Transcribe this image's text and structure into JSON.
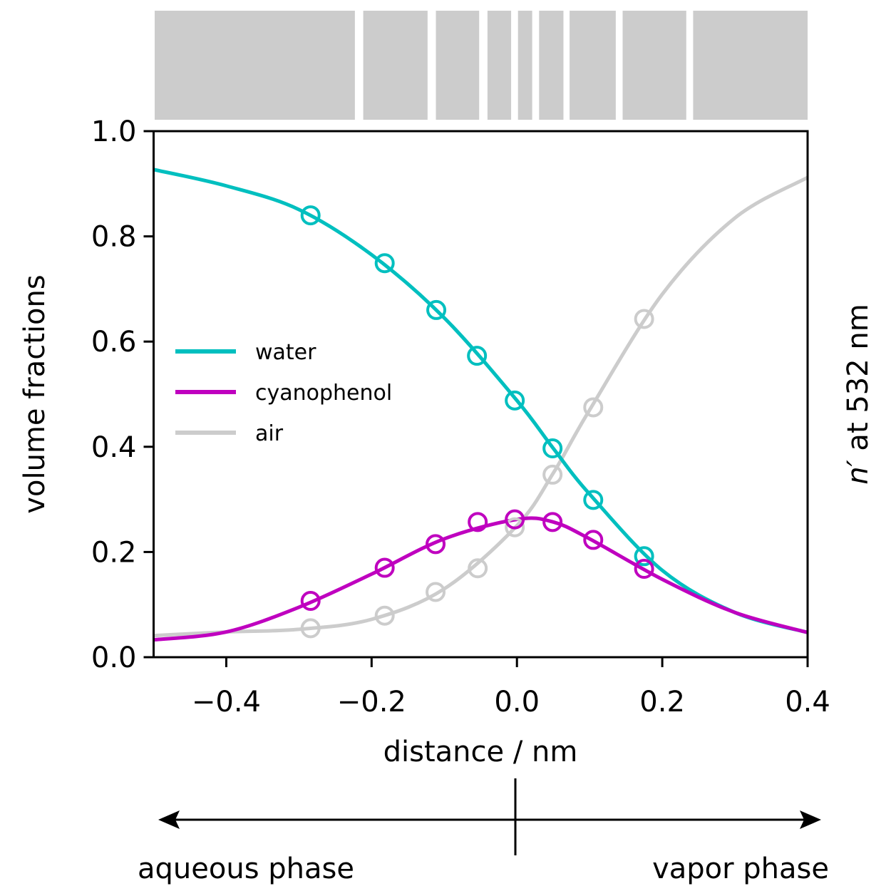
{
  "chart_data": {
    "type": "line",
    "xlabel": "distance / nm",
    "ylabel": "volume fractions",
    "ylabel_right": "n′ at 532 nm",
    "ylabel_right_italic": "n′",
    "ylabel_right_rest": " at 532 nm",
    "xlim": [
      -0.5,
      0.4
    ],
    "ylim": [
      0.0,
      1.0
    ],
    "xticks": [
      -0.4,
      -0.2,
      0.0,
      0.2,
      0.4
    ],
    "xtick_labels": [
      "−0.4",
      "−0.2",
      "0.0",
      "0.2",
      "0.4"
    ],
    "yticks": [
      0.0,
      0.2,
      0.4,
      0.6,
      0.8,
      1.0
    ],
    "ytick_labels": [
      "0.0",
      "0.2",
      "0.4",
      "0.6",
      "0.8",
      "1.0"
    ],
    "grid": false,
    "legend_placement": "center-left",
    "series": [
      {
        "name": "water",
        "color": "#00bfbf",
        "fit_x": [
          -0.5,
          -0.4,
          -0.3,
          -0.2,
          -0.1,
          0.0,
          0.05,
          0.1,
          0.2,
          0.3,
          0.4
        ],
        "fit_y": [
          0.927,
          0.896,
          0.851,
          0.765,
          0.645,
          0.488,
          0.397,
          0.31,
          0.165,
          0.085,
          0.047
        ],
        "points_x": [
          -0.284,
          -0.182,
          -0.111,
          -0.055,
          -0.003,
          0.049,
          0.105,
          0.175
        ],
        "points_y": [
          0.84,
          0.749,
          0.66,
          0.573,
          0.488,
          0.397,
          0.299,
          0.192
        ]
      },
      {
        "name": "cyanophenol",
        "color": "#bf00bf",
        "fit_x": [
          -0.5,
          -0.4,
          -0.3,
          -0.2,
          -0.1,
          0.0,
          0.05,
          0.1,
          0.2,
          0.3,
          0.4
        ],
        "fit_y": [
          0.033,
          0.048,
          0.095,
          0.158,
          0.225,
          0.262,
          0.257,
          0.225,
          0.148,
          0.085,
          0.047
        ],
        "points_x": [
          -0.284,
          -0.182,
          -0.112,
          -0.054,
          -0.003,
          0.049,
          0.105,
          0.175
        ],
        "points_y": [
          0.107,
          0.17,
          0.215,
          0.257,
          0.262,
          0.257,
          0.223,
          0.168
        ]
      },
      {
        "name": "air",
        "color": "#cccccc",
        "fit_x": [
          -0.5,
          -0.4,
          -0.3,
          -0.2,
          -0.1,
          0.0,
          0.05,
          0.1,
          0.2,
          0.3,
          0.4
        ],
        "fit_y": [
          0.041,
          0.048,
          0.053,
          0.072,
          0.13,
          0.25,
          0.35,
          0.47,
          0.69,
          0.835,
          0.912
        ],
        "points_x": [
          -0.284,
          -0.182,
          -0.112,
          -0.054,
          -0.003,
          0.049,
          0.105,
          0.175
        ],
        "points_y": [
          0.055,
          0.079,
          0.124,
          0.169,
          0.247,
          0.347,
          0.475,
          0.643
        ]
      }
    ],
    "layer_bar": {
      "color": "#cccccc",
      "boundaries_nm": [
        -0.5,
        -0.223,
        -0.213,
        -0.123,
        -0.113,
        -0.052,
        -0.042,
        -0.008,
        0.0,
        0.021,
        0.029,
        0.064,
        0.071,
        0.136,
        0.144,
        0.233,
        0.241,
        0.4
      ]
    },
    "phase_axis": {
      "left_label": "aqueous phase",
      "right_label": "vapor phase"
    }
  }
}
